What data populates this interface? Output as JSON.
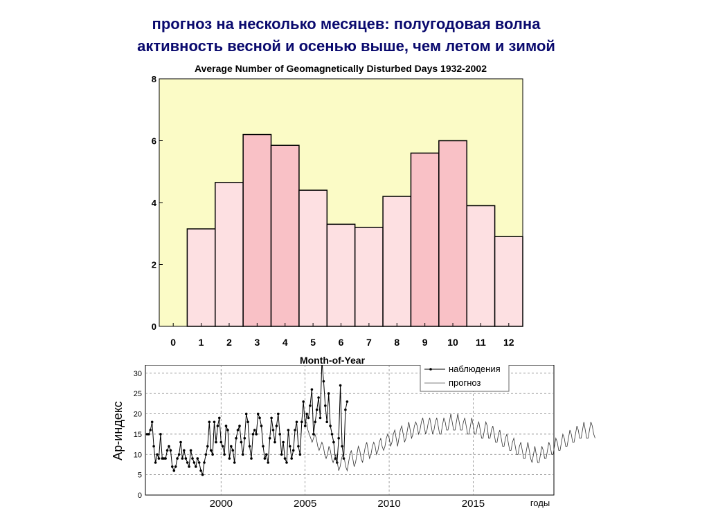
{
  "slide": {
    "title_line1": "прогноз на несколько месяцев:  полугодовая волна",
    "title_line2": "активность весной и осенью выше, чем летом и зимой"
  },
  "chart_data": [
    {
      "type": "bar",
      "title": "Average Number of Geomagnetically Disturbed Days 1932-2002",
      "xlabel": "Month-of-Year",
      "ylabel": "",
      "categories": [
        "1",
        "2",
        "3",
        "4",
        "5",
        "6",
        "7",
        "8",
        "9",
        "10",
        "11",
        "12"
      ],
      "values": [
        3.15,
        4.65,
        6.2,
        5.85,
        4.4,
        3.3,
        3.2,
        4.2,
        5.6,
        6.0,
        3.9,
        2.9
      ],
      "highlighted_months": [
        3,
        4,
        9,
        10
      ],
      "x_ticks": [
        "0",
        "1",
        "2",
        "3",
        "4",
        "5",
        "6",
        "7",
        "8",
        "9",
        "10",
        "11",
        "12"
      ],
      "y_ticks": [
        "0",
        "2",
        "4",
        "6",
        "8"
      ],
      "ylim": [
        0,
        8
      ],
      "colors": {
        "plot_background": "#fbfbc6",
        "bar_light": "#fde0e2",
        "bar_dark": "#f9c1c6",
        "bar_edge": "#000000"
      }
    },
    {
      "type": "line",
      "title": "",
      "xlabel": "годы",
      "ylabel": "Ap-индекс",
      "x_ticks": [
        "2000",
        "2005",
        "2010",
        "2015"
      ],
      "y_ticks": [
        "0",
        "5",
        "10",
        "15",
        "20",
        "25",
        "30"
      ],
      "xlim": [
        1995.5,
        2019.8
      ],
      "ylim": [
        0,
        32
      ],
      "legend": {
        "position": "top-right",
        "entries": [
          "наблюдения",
          "прогноз"
        ]
      },
      "series": [
        {
          "name": "наблюдения",
          "style": "line-with-markers",
          "x_start": 1995.6,
          "x_step": 0.1,
          "values": [
            15,
            15,
            16,
            18,
            12,
            8,
            10,
            9,
            15,
            9,
            9,
            9,
            11,
            12,
            11,
            7,
            6,
            7,
            9,
            10,
            13,
            9,
            11,
            9,
            8,
            7,
            11,
            9,
            8,
            7,
            9,
            8,
            6,
            5,
            8,
            10,
            12,
            18,
            11,
            10,
            18,
            13,
            17,
            19,
            13,
            12,
            10,
            17,
            16,
            9,
            12,
            11,
            8,
            14,
            16,
            17,
            13,
            10,
            14,
            20,
            18,
            12,
            9,
            15,
            16,
            15,
            20,
            19,
            17,
            12,
            9,
            10,
            8,
            14,
            19,
            16,
            13,
            17,
            20,
            15,
            10,
            13,
            9,
            8,
            16,
            12,
            9,
            11,
            16,
            18,
            12,
            10,
            18,
            23,
            17,
            20,
            19,
            22,
            26,
            15,
            18,
            21,
            24,
            19,
            33,
            28,
            22,
            18,
            25,
            17,
            15,
            13,
            9,
            8,
            14,
            27,
            12,
            9,
            21,
            23
          ]
        },
        {
          "name": "прогноз",
          "style": "thin-line",
          "x_start": 2005.0,
          "x_step": 0.083333,
          "values": [
            18,
            18,
            16,
            15,
            14,
            13,
            14,
            15,
            14,
            12,
            11,
            12,
            13,
            12,
            10,
            9,
            10,
            12,
            11,
            9,
            8,
            9,
            10,
            8,
            6,
            7,
            9,
            10,
            9,
            7,
            6,
            8,
            10,
            11,
            9,
            7,
            8,
            10,
            12,
            11,
            9,
            8,
            10,
            12,
            13,
            11,
            9,
            10,
            12,
            13,
            12,
            10,
            11,
            13,
            14,
            12,
            11,
            12,
            14,
            15,
            14,
            12,
            13,
            15,
            16,
            14,
            12,
            14,
            16,
            17,
            15,
            13,
            14,
            16,
            18,
            16,
            14,
            15,
            17,
            18,
            17,
            15,
            16,
            18,
            19,
            17,
            15,
            16,
            18,
            19,
            17,
            15,
            16,
            18,
            19,
            17,
            15,
            15,
            17,
            19,
            18,
            16,
            16,
            18,
            20,
            18,
            16,
            16,
            18,
            20,
            18,
            16,
            16,
            18,
            19,
            17,
            15,
            15,
            17,
            19,
            17,
            15,
            15,
            17,
            18,
            16,
            14,
            14,
            16,
            18,
            17,
            14,
            14,
            16,
            17,
            15,
            13,
            13,
            15,
            16,
            14,
            12,
            12,
            14,
            15,
            13,
            11,
            11,
            13,
            14,
            12,
            10,
            10,
            12,
            13,
            11,
            9,
            9,
            11,
            13,
            11,
            9,
            8,
            10,
            12,
            10,
            8,
            8,
            10,
            12,
            11,
            9,
            9,
            11,
            13,
            12,
            10,
            10,
            12,
            14,
            13,
            11,
            11,
            13,
            15,
            14,
            12,
            12,
            14,
            16,
            15,
            13,
            13,
            15,
            17,
            16,
            14,
            14,
            16,
            18,
            16,
            14,
            14,
            16,
            18,
            17,
            15,
            14
          ]
        }
      ]
    }
  ]
}
